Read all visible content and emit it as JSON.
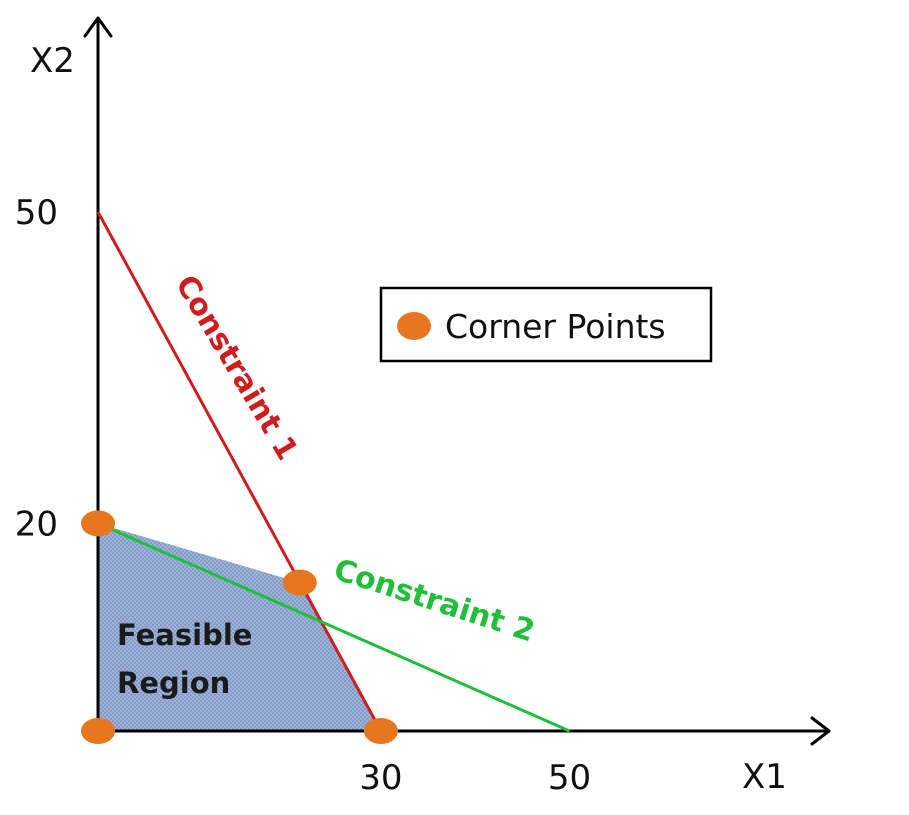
{
  "chart_data": {
    "type": "line",
    "xlabel": "X1",
    "ylabel": "X2",
    "xlim": [
      0,
      50
    ],
    "ylim": [
      0,
      50
    ],
    "x_ticks": [
      30,
      50
    ],
    "y_ticks": [
      20,
      50
    ],
    "grid": false,
    "series": [
      {
        "name": "Constraint 1",
        "color": "#d01c1c",
        "points": [
          [
            0,
            50
          ],
          [
            30,
            0
          ]
        ]
      },
      {
        "name": "Constraint 2",
        "color": "#1fbf3a",
        "points": [
          [
            0,
            20
          ],
          [
            50,
            0
          ]
        ]
      }
    ],
    "feasible_region": {
      "label_lines": [
        "Feasible",
        "Region"
      ],
      "fill_color": "#9db3d8",
      "vertices": [
        [
          0,
          0
        ],
        [
          0,
          20
        ],
        [
          21.4,
          14.3
        ],
        [
          30,
          0
        ]
      ]
    },
    "corner_points": {
      "name": "Corner Points",
      "color": "#e8761e",
      "points": [
        [
          0,
          0
        ],
        [
          0,
          20
        ],
        [
          21.4,
          14.3
        ],
        [
          30,
          0
        ]
      ]
    },
    "legend": {
      "position": "upper-right",
      "entries": [
        "Corner Points"
      ]
    }
  }
}
